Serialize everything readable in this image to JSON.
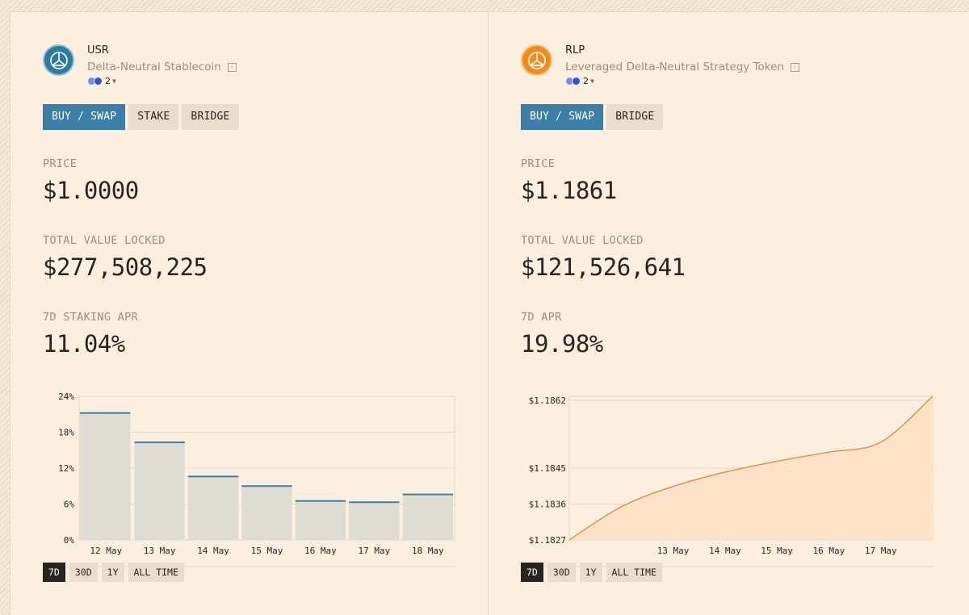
{
  "panels": [
    {
      "symbol": "USR",
      "description": "Delta-Neutral Stablecoin",
      "info_icon": "info-icon",
      "chain_count": "2",
      "accent": "#2d7c9c",
      "actions": [
        "BUY / SWAP",
        "STAKE",
        "BRIDGE"
      ],
      "stats": [
        {
          "label": "PRICE",
          "value": "$1.0000"
        },
        {
          "label": "TOTAL VALUE LOCKED",
          "value": "$277,508,225"
        },
        {
          "label": "7D STAKING APR",
          "value": "11.04%"
        }
      ],
      "ranges": [
        "7D",
        "30D",
        "1Y",
        "ALL TIME"
      ],
      "active_range": "7D"
    },
    {
      "symbol": "RLP",
      "description": "Leveraged Delta-Neutral Strategy Token",
      "info_icon": "info-icon",
      "chain_count": "2",
      "accent": "#f08a1c",
      "actions": [
        "BUY / SWAP",
        "BRIDGE"
      ],
      "stats": [
        {
          "label": "PRICE",
          "value": "$1.1861"
        },
        {
          "label": "TOTAL VALUE LOCKED",
          "value": "$121,526,641"
        },
        {
          "label": "7D APR",
          "value": "19.98%"
        }
      ],
      "ranges": [
        "7D",
        "30D",
        "1Y",
        "ALL TIME"
      ],
      "active_range": "7D"
    }
  ],
  "chart_data": [
    {
      "type": "bar",
      "categories": [
        "12 May",
        "13 May",
        "14 May",
        "15 May",
        "16 May",
        "17 May",
        "18 May"
      ],
      "values": [
        21.2,
        16.3,
        10.6,
        9.0,
        6.5,
        6.3,
        7.6
      ],
      "ylim": [
        0,
        24
      ],
      "yticks": [
        0,
        6,
        12,
        18,
        24
      ],
      "ytick_labels": [
        "0%",
        "6%",
        "12%",
        "18%",
        "24%"
      ],
      "grid": true,
      "colors": {
        "bar": "#dfddd3",
        "bar_top": "#3d7ea8",
        "grid": "#e6d6c3"
      }
    },
    {
      "type": "area",
      "x": [
        "11 May",
        "12 May",
        "13 May",
        "14 May",
        "15 May",
        "16 May",
        "17 May",
        "18 May"
      ],
      "x_tick_labels": [
        "13 May",
        "14 May",
        "15 May",
        "16 May",
        "17 May"
      ],
      "y": [
        1.1827,
        1.18353,
        1.18404,
        1.1844,
        1.18467,
        1.1849,
        1.18515,
        1.1863
      ],
      "ylim": [
        1.1827,
        1.1863
      ],
      "yticks": [
        1.1827,
        1.1836,
        1.1845,
        1.1862
      ],
      "ytick_labels": [
        "$1.1827",
        "$1.1836",
        "$1.1845",
        "$1.1862"
      ],
      "grid": true,
      "colors": {
        "line": "#e08c3c",
        "fill": "#fbe1c6",
        "grid": "#e6d6c3"
      }
    }
  ]
}
